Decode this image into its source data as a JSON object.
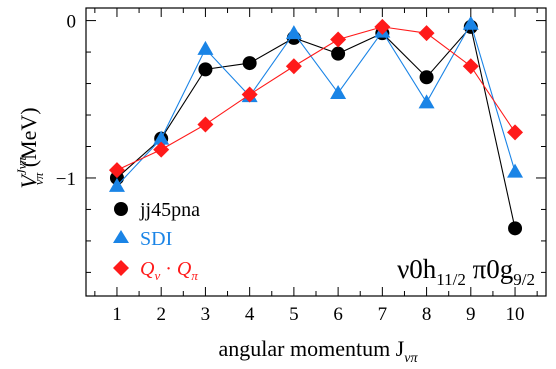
{
  "chart_data": {
    "type": "line",
    "x": [
      1,
      2,
      3,
      4,
      5,
      6,
      7,
      8,
      9,
      10
    ],
    "xlim": [
      0.3,
      10.7
    ],
    "ylim": [
      -1.75,
      0.08
    ],
    "xticks": [
      1,
      2,
      3,
      4,
      5,
      6,
      7,
      8,
      9,
      10
    ],
    "yticks": [
      0,
      -1
    ],
    "ytick_labels": [
      "0",
      "−1"
    ],
    "xlabel": "angular momentum J",
    "xlabel_sub": "νπ",
    "ylabel_main": "V",
    "ylabel_sup": "Jνπ",
    "ylabel_sub": "νπ",
    "ylabel_unit": "(MeV)",
    "grid": false,
    "legend_position": "lower-left",
    "annotation": {
      "parts": [
        "ν0h",
        "11/2",
        " π0g",
        "9/2"
      ]
    },
    "series": [
      {
        "name": "jj45pna",
        "marker": "circle",
        "color": "#000000",
        "values": [
          -1.0,
          -0.75,
          -0.31,
          -0.27,
          -0.11,
          -0.21,
          -0.08,
          -0.36,
          -0.04,
          -1.32
        ]
      },
      {
        "name": "SDI",
        "marker": "triangle",
        "color": "#1a84e6",
        "values": [
          -1.05,
          -0.75,
          -0.18,
          -0.48,
          -0.08,
          -0.46,
          -0.07,
          -0.52,
          -0.02,
          -0.96
        ]
      },
      {
        "name_parts": [
          "Q",
          "ν",
          " · ",
          "Q",
          "π"
        ],
        "marker": "diamond",
        "color": "#ff1a1a",
        "values": [
          -0.95,
          -0.82,
          -0.66,
          -0.47,
          -0.29,
          -0.12,
          -0.04,
          -0.08,
          -0.29,
          -0.71
        ]
      }
    ]
  }
}
